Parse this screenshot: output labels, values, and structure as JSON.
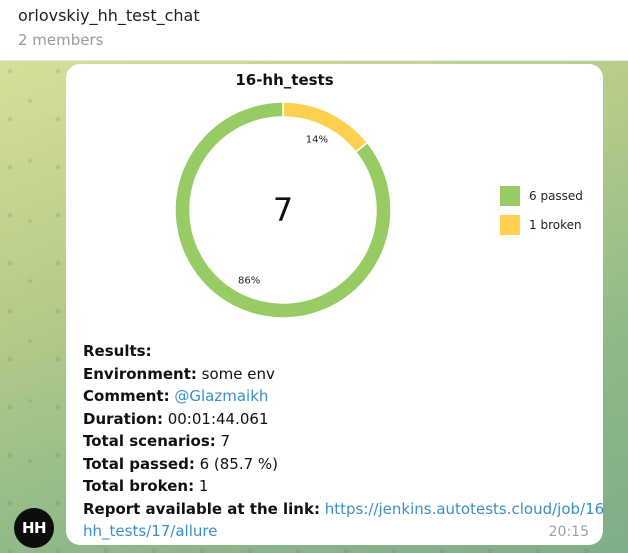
{
  "chat": {
    "title": "orlovskiy_hh_test_chat",
    "members": "2 members"
  },
  "message": {
    "avatar_initials": "HH",
    "time": "20:15",
    "results_heading": "Results:",
    "environment_label": "Environment:",
    "environment_value": " some env",
    "comment_label": "Comment:",
    "comment_value": "@Glazmaikh",
    "duration_label": "Duration:",
    "duration_value": " 00:01:44.061",
    "scenarios_label": "Total scenarios:",
    "scenarios_value": " 7",
    "passed_label": "Total passed:",
    "passed_value": " 6 (85.7 %)",
    "broken_label": "Total broken:",
    "broken_value": " 1",
    "report_label": "Report available at the link:",
    "report_link_line1": "https://jenkins.autotests.cloud/job/16-",
    "report_link_line2": "hh_tests/17/allure"
  },
  "chart_data": {
    "type": "pie",
    "title": "16-hh_tests",
    "center_label": "7",
    "slices": [
      {
        "label": "6 passed",
        "value": 6,
        "percent_label": "86%",
        "color": "#97cc64"
      },
      {
        "label": "1 broken",
        "value": 1,
        "percent_label": "14%",
        "color": "#ffd050"
      }
    ],
    "legend_position": "right"
  }
}
